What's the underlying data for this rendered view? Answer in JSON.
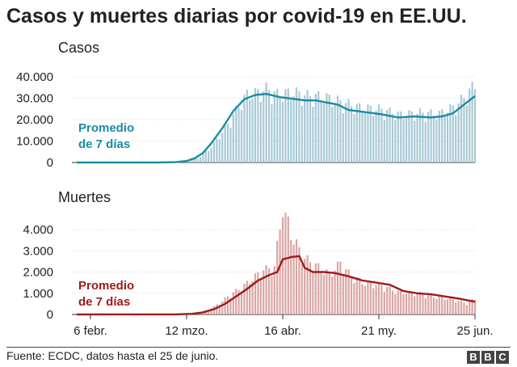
{
  "title": "Casos y muertes diarias por covid-19 en EE.UU.",
  "source": "Fuente: ECDC, datos hasta el 25 de junio.",
  "logo": [
    "B",
    "B",
    "C"
  ],
  "colors": {
    "cases_bar": "#a8c9d6",
    "cases_line": "#1b8ba3",
    "deaths_bar": "#dba5a5",
    "deaths_line": "#a11a1a",
    "axis": "#333333",
    "grid": "#dddddd"
  },
  "chart_data": [
    {
      "type": "bar",
      "panel": "cases",
      "title": "Casos",
      "annotation": [
        "Promedio",
        "de 7 días"
      ],
      "y_ticks": [
        {
          "value": 0,
          "label": "0"
        },
        {
          "value": 10000,
          "label": "10.000"
        },
        {
          "value": 20000,
          "label": "20.000"
        },
        {
          "value": 30000,
          "label": "30.000"
        },
        {
          "value": 40000,
          "label": "40.000"
        }
      ],
      "ylim": [
        0,
        40000
      ],
      "x_start": "2020-02-01",
      "x_end": "2020-06-25",
      "series": [
        {
          "name": "Casos",
          "kind": "bar",
          "keypoints": [
            [
              "2020-02-01",
              0
            ],
            [
              "2020-02-28",
              5
            ],
            [
              "2020-03-05",
              40
            ],
            [
              "2020-03-12",
              400
            ],
            [
              "2020-03-16",
              1800
            ],
            [
              "2020-03-20",
              5500
            ],
            [
              "2020-03-23",
              10000
            ],
            [
              "2020-03-27",
              17000
            ],
            [
              "2020-03-31",
              25000
            ],
            [
              "2020-04-03",
              30000
            ],
            [
              "2020-04-06",
              30500
            ],
            [
              "2020-04-10",
              32500
            ],
            [
              "2020-04-14",
              30000
            ],
            [
              "2020-04-20",
              31000
            ],
            [
              "2020-04-25",
              29500
            ],
            [
              "2020-05-01",
              29000
            ],
            [
              "2020-05-08",
              26500
            ],
            [
              "2020-05-15",
              24000
            ],
            [
              "2020-05-22",
              23500
            ],
            [
              "2020-05-29",
              21000
            ],
            [
              "2020-06-05",
              22000
            ],
            [
              "2020-06-12",
              21500
            ],
            [
              "2020-06-18",
              25000
            ],
            [
              "2020-06-22",
              30000
            ],
            [
              "2020-06-25",
              34500
            ]
          ]
        },
        {
          "name": "Promedio de 7 días",
          "kind": "line",
          "keypoints": [
            [
              "2020-02-01",
              0
            ],
            [
              "2020-03-01",
              10
            ],
            [
              "2020-03-08",
              150
            ],
            [
              "2020-03-12",
              700
            ],
            [
              "2020-03-15",
              2000
            ],
            [
              "2020-03-18",
              4500
            ],
            [
              "2020-03-21",
              9000
            ],
            [
              "2020-03-25",
              16000
            ],
            [
              "2020-03-29",
              24000
            ],
            [
              "2020-04-02",
              29500
            ],
            [
              "2020-04-06",
              31500
            ],
            [
              "2020-04-10",
              32000
            ],
            [
              "2020-04-15",
              30500
            ],
            [
              "2020-04-18",
              30000
            ],
            [
              "2020-04-21",
              29500
            ],
            [
              "2020-04-24",
              29000
            ],
            [
              "2020-04-28",
              29000
            ],
            [
              "2020-05-02",
              28000
            ],
            [
              "2020-05-06",
              27000
            ],
            [
              "2020-05-10",
              24500
            ],
            [
              "2020-05-16",
              23500
            ],
            [
              "2020-05-22",
              22500
            ],
            [
              "2020-05-28",
              21000
            ],
            [
              "2020-06-03",
              21500
            ],
            [
              "2020-06-09",
              21000
            ],
            [
              "2020-06-13",
              21500
            ],
            [
              "2020-06-17",
              23000
            ],
            [
              "2020-06-21",
              27000
            ],
            [
              "2020-06-25",
              31000
            ]
          ]
        }
      ]
    },
    {
      "type": "bar",
      "panel": "deaths",
      "title": "Muertes",
      "annotation": [
        "Promedio",
        "de 7 días"
      ],
      "y_ticks": [
        {
          "value": 0,
          "label": "0"
        },
        {
          "value": 1000,
          "label": "1.000"
        },
        {
          "value": 2000,
          "label": "2.000"
        },
        {
          "value": 3000,
          "label": "3.000"
        },
        {
          "value": 4000,
          "label": "4.000"
        }
      ],
      "ylim": [
        0,
        4000
      ],
      "x_start": "2020-02-01",
      "x_end": "2020-06-25",
      "x_ticks": [
        {
          "date": "2020-02-06",
          "label": "6 febr."
        },
        {
          "date": "2020-03-12",
          "label": "12 mzo."
        },
        {
          "date": "2020-04-16",
          "label": "16 abr."
        },
        {
          "date": "2020-05-21",
          "label": "21 my."
        },
        {
          "date": "2020-06-25",
          "label": "25 jun."
        }
      ],
      "series": [
        {
          "name": "Muertes",
          "kind": "bar",
          "keypoints": [
            [
              "2020-02-01",
              0
            ],
            [
              "2020-03-05",
              3
            ],
            [
              "2020-03-12",
              20
            ],
            [
              "2020-03-16",
              80
            ],
            [
              "2020-03-20",
              220
            ],
            [
              "2020-03-24",
              500
            ],
            [
              "2020-03-28",
              900
            ],
            [
              "2020-04-01",
              1200
            ],
            [
              "2020-04-05",
              1600
            ],
            [
              "2020-04-09",
              2000
            ],
            [
              "2020-04-13",
              2100
            ],
            [
              "2020-04-16",
              4900
            ],
            [
              "2020-04-20",
              3300
            ],
            [
              "2020-04-24",
              2500
            ],
            [
              "2020-04-28",
              2200
            ],
            [
              "2020-05-03",
              1800
            ],
            [
              "2020-05-07",
              2300
            ],
            [
              "2020-05-11",
              1700
            ],
            [
              "2020-05-16",
              1400
            ],
            [
              "2020-05-22",
              1300
            ],
            [
              "2020-05-28",
              1000
            ],
            [
              "2020-06-04",
              950
            ],
            [
              "2020-06-10",
              800
            ],
            [
              "2020-06-16",
              700
            ],
            [
              "2020-06-22",
              500
            ],
            [
              "2020-06-25",
              700
            ]
          ]
        },
        {
          "name": "Promedio de 7 días",
          "kind": "line",
          "keypoints": [
            [
              "2020-02-01",
              0
            ],
            [
              "2020-03-08",
              5
            ],
            [
              "2020-03-14",
              30
            ],
            [
              "2020-03-18",
              100
            ],
            [
              "2020-03-22",
              250
            ],
            [
              "2020-03-26",
              500
            ],
            [
              "2020-03-30",
              850
            ],
            [
              "2020-04-03",
              1200
            ],
            [
              "2020-04-07",
              1600
            ],
            [
              "2020-04-11",
              1850
            ],
            [
              "2020-04-14",
              2000
            ],
            [
              "2020-04-16",
              2600
            ],
            [
              "2020-04-19",
              2700
            ],
            [
              "2020-04-22",
              2750
            ],
            [
              "2020-04-24",
              2200
            ],
            [
              "2020-04-27",
              2000
            ],
            [
              "2020-05-01",
              2000
            ],
            [
              "2020-05-05",
              1950
            ],
            [
              "2020-05-10",
              1800
            ],
            [
              "2020-05-15",
              1600
            ],
            [
              "2020-05-20",
              1500
            ],
            [
              "2020-05-25",
              1400
            ],
            [
              "2020-05-30",
              1100
            ],
            [
              "2020-06-04",
              1000
            ],
            [
              "2020-06-09",
              950
            ],
            [
              "2020-06-14",
              850
            ],
            [
              "2020-06-19",
              750
            ],
            [
              "2020-06-25",
              600
            ]
          ]
        }
      ]
    }
  ]
}
